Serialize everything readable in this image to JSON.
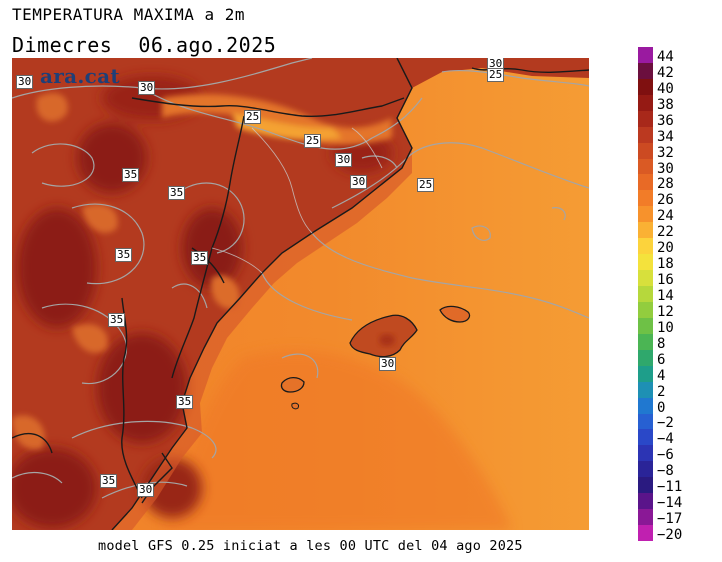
{
  "header": {
    "title": "TEMPERATURA MAXIMA a 2m",
    "day": "Dimecres",
    "date": "06.ago.2025"
  },
  "map": {
    "watermark": "ara.cat",
    "contour_labels": [
      {
        "text": "30"
      },
      {
        "text": "30"
      },
      {
        "text": "30"
      },
      {
        "text": "25"
      },
      {
        "text": "25"
      },
      {
        "text": "25"
      },
      {
        "text": "30"
      },
      {
        "text": "30"
      },
      {
        "text": "25"
      },
      {
        "text": "35"
      },
      {
        "text": "35"
      },
      {
        "text": "35"
      },
      {
        "text": "35"
      },
      {
        "text": "35"
      },
      {
        "text": "35"
      },
      {
        "text": "30"
      },
      {
        "text": "35"
      },
      {
        "text": "30"
      }
    ],
    "colors": {
      "sea_warm": "#f07f2a",
      "sea_mild": "#f59a33",
      "land_hot": "#b83a20",
      "land_very_hot": "#8e1d14",
      "land_cooler": "#e0712a",
      "coastline": "#1a1a1a",
      "contour": "#a0a0a0"
    }
  },
  "footer": {
    "text": "model GFS 0.25 iniciat a les 00 UTC del 04 ago 2025"
  },
  "legend": {
    "labels": [
      "44",
      "42",
      "40",
      "38",
      "36",
      "34",
      "32",
      "30",
      "28",
      "26",
      "24",
      "22",
      "20",
      "18",
      "16",
      "14",
      "12",
      "10",
      "8",
      "6",
      "4",
      "2",
      "0",
      "−2",
      "−4",
      "−6",
      "−8",
      "−11",
      "−14",
      "−17",
      "−20"
    ],
    "colors": [
      "#9a1aa0",
      "#6b0f3e",
      "#7f1010",
      "#951a14",
      "#a8281a",
      "#bb3920",
      "#cc4a22",
      "#da5a24",
      "#e86a26",
      "#f27c28",
      "#f7922c",
      "#fab134",
      "#fcd33c",
      "#f4e23c",
      "#d7e03c",
      "#b6d83c",
      "#92cd3e",
      "#6ec146",
      "#4bb554",
      "#2fa86c",
      "#1e9e8a",
      "#1e90b4",
      "#2078d0",
      "#2760d2",
      "#2a48c8",
      "#2c34b4",
      "#2a2498",
      "#2a1a80",
      "#5a148a",
      "#8a1896",
      "#c020b0"
    ]
  }
}
